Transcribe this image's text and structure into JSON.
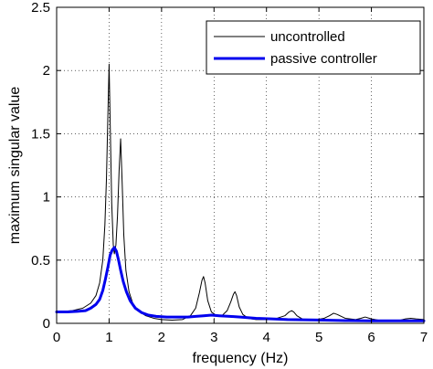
{
  "chart_data": {
    "type": "line",
    "xlabel": "frequency (Hz)",
    "ylabel": "maximum singular value",
    "xlim": [
      0,
      7
    ],
    "ylim": [
      0,
      2.5
    ],
    "xticks": [
      "0",
      "1",
      "2",
      "3",
      "4",
      "5",
      "6",
      "7"
    ],
    "yticks": [
      "0",
      "0.5",
      "1",
      "1.5",
      "2",
      "2.5"
    ],
    "grid": true,
    "grid_style": "dotted",
    "legend_position": "top-right",
    "series": [
      {
        "name": "uncontrolled",
        "color": "#000000",
        "x": [
          0,
          0.3,
          0.5,
          0.65,
          0.75,
          0.82,
          0.88,
          0.92,
          0.95,
          0.98,
          1.0,
          1.02,
          1.05,
          1.08,
          1.1,
          1.13,
          1.16,
          1.19,
          1.22,
          1.25,
          1.28,
          1.32,
          1.38,
          1.45,
          1.55,
          1.7,
          1.85,
          2.0,
          2.2,
          2.4,
          2.55,
          2.65,
          2.72,
          2.77,
          2.8,
          2.83,
          2.88,
          2.95,
          3.05,
          3.15,
          3.25,
          3.32,
          3.37,
          3.4,
          3.43,
          3.48,
          3.55,
          3.65,
          3.8,
          4.0,
          4.2,
          4.35,
          4.43,
          4.48,
          4.52,
          4.58,
          4.7,
          4.9,
          5.1,
          5.2,
          5.28,
          5.35,
          5.5,
          5.7,
          5.8,
          5.88,
          6.0,
          6.2,
          6.5,
          6.65,
          6.75,
          6.85,
          7.0
        ],
        "values": [
          0.09,
          0.1,
          0.12,
          0.16,
          0.22,
          0.32,
          0.5,
          0.78,
          1.15,
          1.7,
          2.05,
          1.6,
          0.95,
          0.62,
          0.55,
          0.62,
          0.85,
          1.2,
          1.46,
          1.1,
          0.7,
          0.42,
          0.25,
          0.16,
          0.1,
          0.06,
          0.04,
          0.03,
          0.025,
          0.03,
          0.06,
          0.12,
          0.24,
          0.34,
          0.37,
          0.32,
          0.18,
          0.09,
          0.06,
          0.06,
          0.1,
          0.17,
          0.23,
          0.25,
          0.22,
          0.13,
          0.07,
          0.04,
          0.03,
          0.03,
          0.04,
          0.06,
          0.09,
          0.1,
          0.09,
          0.06,
          0.03,
          0.025,
          0.04,
          0.06,
          0.08,
          0.07,
          0.04,
          0.03,
          0.04,
          0.05,
          0.035,
          0.02,
          0.02,
          0.035,
          0.04,
          0.035,
          0.03
        ]
      },
      {
        "name": "passive controller",
        "color": "#0000ee",
        "x": [
          0,
          0.2,
          0.4,
          0.55,
          0.65,
          0.75,
          0.82,
          0.88,
          0.93,
          0.98,
          1.02,
          1.06,
          1.1,
          1.14,
          1.18,
          1.22,
          1.27,
          1.33,
          1.4,
          1.5,
          1.62,
          1.75,
          1.9,
          2.1,
          2.3,
          2.5,
          2.65,
          2.8,
          2.95,
          3.1,
          3.3,
          3.5,
          3.8,
          4.1,
          4.4,
          4.7,
          5.0,
          5.5,
          6.0,
          6.5,
          7.0
        ],
        "values": [
          0.09,
          0.09,
          0.095,
          0.1,
          0.12,
          0.15,
          0.19,
          0.26,
          0.35,
          0.45,
          0.54,
          0.58,
          0.6,
          0.57,
          0.5,
          0.42,
          0.33,
          0.25,
          0.18,
          0.12,
          0.085,
          0.065,
          0.055,
          0.05,
          0.05,
          0.05,
          0.055,
          0.06,
          0.065,
          0.06,
          0.055,
          0.05,
          0.04,
          0.035,
          0.03,
          0.028,
          0.026,
          0.022,
          0.02,
          0.02,
          0.02
        ]
      }
    ]
  }
}
